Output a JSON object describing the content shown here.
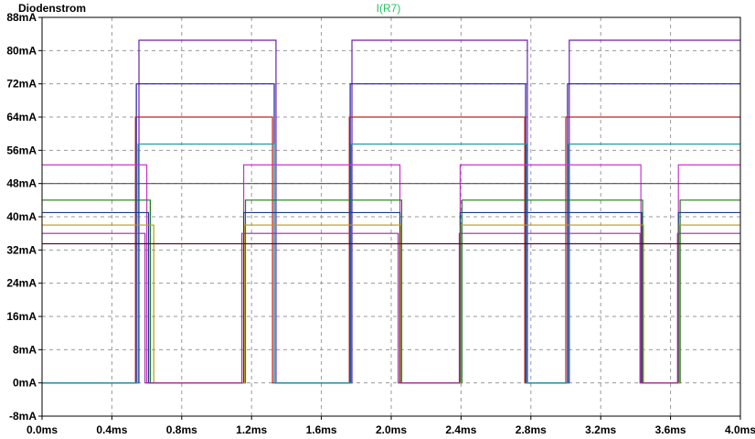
{
  "chart_data": {
    "type": "line",
    "title": "Diodenstrom",
    "legend_label": "I(R7)",
    "legend_color": "#22c55e",
    "xlim": [
      0.0,
      4.0
    ],
    "ylim": [
      -8,
      88
    ],
    "x_ticks": [
      0.0,
      0.4,
      0.8,
      1.2,
      1.6,
      2.0,
      2.4,
      2.8,
      3.2,
      3.6,
      4.0
    ],
    "x_tick_labels": [
      "0.0ms",
      "0.4ms",
      "0.8ms",
      "1.2ms",
      "1.6ms",
      "2.0ms",
      "2.4ms",
      "2.8ms",
      "3.2ms",
      "3.6ms",
      "4.0ms"
    ],
    "y_ticks": [
      -8,
      0,
      8,
      16,
      24,
      32,
      40,
      48,
      56,
      64,
      72,
      80,
      88
    ],
    "y_tick_labels": [
      "-8mA",
      "0mA",
      "8mA",
      "16mA",
      "24mA",
      "32mA",
      "40mA",
      "48mA",
      "56mA",
      "64mA",
      "72mA",
      "80mA",
      "88mA"
    ],
    "grid": true,
    "series": [
      {
        "color": "#6b21a8",
        "high": 82.5,
        "on": [
          [
            0.555,
            1.34
          ],
          [
            1.775,
            2.78
          ],
          [
            3.02,
            4.0
          ]
        ]
      },
      {
        "color": "#1e1ea8",
        "high": 72.0,
        "on": [
          [
            0.54,
            1.33
          ],
          [
            1.765,
            2.77
          ],
          [
            3.01,
            4.0
          ]
        ]
      },
      {
        "color": "#c02020",
        "high": 64.0,
        "on": [
          [
            0.535,
            1.32
          ],
          [
            1.76,
            2.765
          ],
          [
            3.0,
            4.0
          ]
        ]
      },
      {
        "color": "#1f9aa8",
        "high": 57.5,
        "on": [
          [
            0.55,
            1.33
          ],
          [
            1.77,
            2.775
          ],
          [
            3.015,
            4.0
          ]
        ]
      },
      {
        "color": "#cc33cc",
        "high": 52.5,
        "on": [
          [
            0.0,
            0.6
          ],
          [
            1.155,
            2.05
          ],
          [
            2.395,
            3.43
          ],
          [
            3.645,
            4.0
          ]
        ]
      },
      {
        "color": "#555555",
        "high": 48.0,
        "on": [
          [
            0.0,
            4.0
          ]
        ]
      },
      {
        "color": "#1a7a1a",
        "high": 44.0,
        "on": [
          [
            0.0,
            0.62
          ],
          [
            1.165,
            2.06
          ],
          [
            2.405,
            3.44
          ],
          [
            3.655,
            4.0
          ]
        ]
      },
      {
        "color": "#1e3a8a",
        "high": 41.0,
        "on": [
          [
            0.0,
            0.61
          ],
          [
            1.155,
            2.05
          ],
          [
            2.395,
            3.435
          ],
          [
            3.645,
            4.0
          ]
        ]
      },
      {
        "color": "#b89a1a",
        "high": 38.0,
        "on": [
          [
            0.0,
            0.64
          ],
          [
            1.16,
            2.055
          ],
          [
            2.4,
            3.445
          ],
          [
            3.65,
            4.0
          ]
        ]
      },
      {
        "color": "#9b2d9b",
        "high": 36.0,
        "on": [
          [
            0.0,
            0.59
          ],
          [
            1.145,
            2.04
          ],
          [
            2.39,
            3.425
          ],
          [
            3.64,
            4.0
          ]
        ]
      },
      {
        "color": "#5a0f2a",
        "high": 33.5,
        "on": [
          [
            0.0,
            4.0
          ]
        ]
      }
    ]
  }
}
